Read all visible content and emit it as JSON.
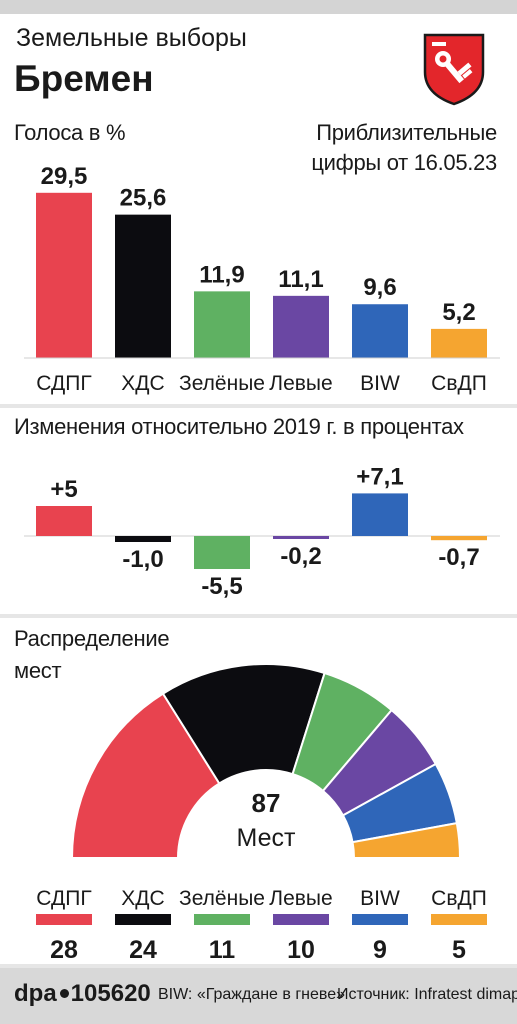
{
  "header": {
    "subtitle": "Земельные выборы",
    "title": "Бремен",
    "note_line1": "Приблизительные",
    "note_line2": "цифры от 16.05.23"
  },
  "colors": {
    "СДПГ": "#e8434f",
    "ХДС": "#0c0c10",
    "Зелёные": "#5fb162",
    "Левые": "#6a47a3",
    "BIW": "#2f66b9",
    "СвДП": "#f5a530"
  },
  "chart_data": [
    {
      "type": "bar",
      "title": "Голоса в %",
      "categories": [
        "СДПГ",
        "ХДС",
        "Зелёные",
        "Левые",
        "BIW",
        "СвДП"
      ],
      "values": [
        29.5,
        25.6,
        11.9,
        11.1,
        9.6,
        5.2
      ],
      "value_labels": [
        "29,5",
        "25,6",
        "11,9",
        "11,1",
        "9,6",
        "5,2"
      ]
    },
    {
      "type": "bar",
      "title": "Изменения относительно 2019 г. в процентах",
      "categories": [
        "СДПГ",
        "ХДС",
        "Зелёные",
        "Левые",
        "BIW",
        "СвДП"
      ],
      "values": [
        5,
        -1.0,
        -5.5,
        -0.2,
        7.1,
        -0.7
      ],
      "value_labels": [
        "+5",
        "-1,0",
        "-5,5",
        "-0,2",
        "+7,1",
        "-0,7"
      ]
    },
    {
      "type": "pie",
      "title_line1": "Распределение",
      "title_line2": "мест",
      "total": 87,
      "total_label": "87",
      "center_label": "Мест",
      "categories": [
        "СДПГ",
        "ХДС",
        "Зелёные",
        "Левые",
        "BIW",
        "СвДП"
      ],
      "values": [
        28,
        24,
        11,
        10,
        9,
        5
      ]
    }
  ],
  "footer": {
    "logo": "dpa",
    "id": "105620",
    "biw_note": "BIW: «Граждане в гневе»",
    "source": "Источник: Infratest dimap"
  }
}
